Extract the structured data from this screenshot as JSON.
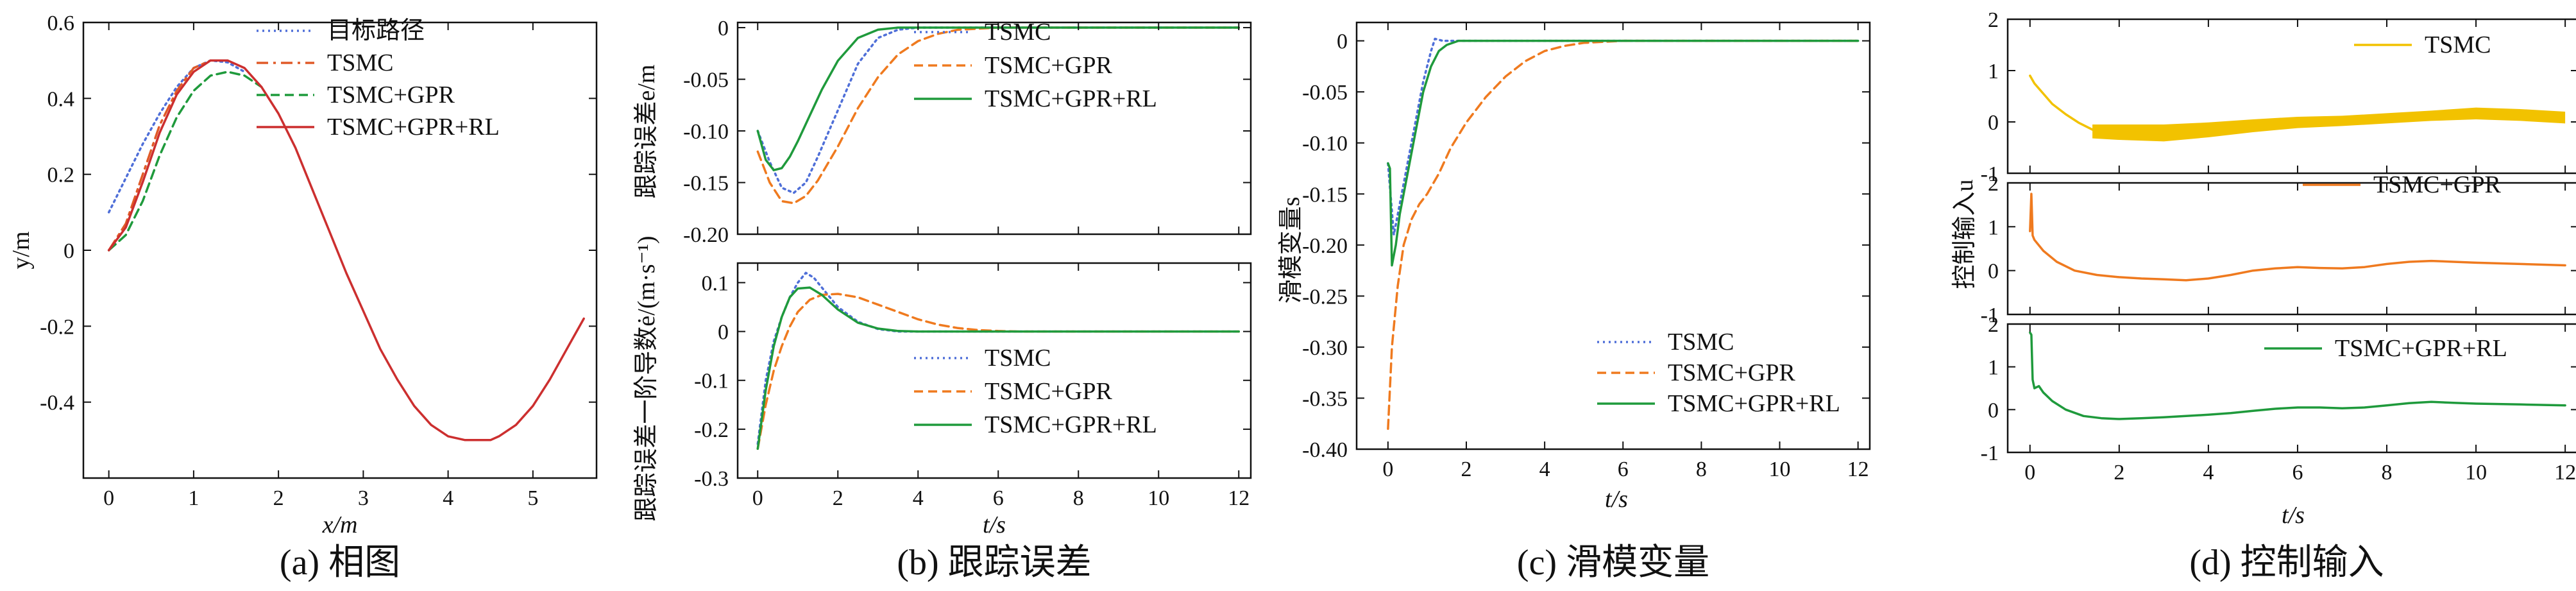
{
  "figure": {
    "captions": [
      "(a) 相图",
      "(b) 跟踪误差",
      "(c) 滑模变量",
      "(d) 控制输入"
    ]
  },
  "colors": {
    "target": "#4f6fd8",
    "tsmc": "#e8c40a",
    "tsmc_gpr_rl": "#cc2f2f",
    "gpr": "#ef7a1f",
    "gpr_rl": "#1f9a3c",
    "tsmc_c": "#4f6fd8"
  },
  "chart_data": [
    {
      "id": "a",
      "type": "line",
      "title": "(a) 相图",
      "xlabel": "x/m",
      "ylabel": "y/m",
      "xlim": [
        -0.3,
        5.75
      ],
      "ylim": [
        -0.6,
        0.6
      ],
      "xticks": [
        0,
        1,
        2,
        3,
        4,
        5
      ],
      "xtick_labels": [
        "0",
        "1",
        "2",
        "3",
        "4",
        "5"
      ],
      "yticks": [
        -0.4,
        -0.2,
        0,
        0.2,
        0.4,
        0.6
      ],
      "ytick_labels": [
        "-0.4",
        "-0.2",
        "0",
        "0.2",
        "0.4",
        "0.6"
      ],
      "legend": "top-right",
      "series": [
        {
          "name": "目标路径",
          "style": "dotted",
          "color": "#4f6fd8",
          "x": [
            0,
            0.2,
            0.4,
            0.6,
            0.8,
            1.0,
            1.2,
            1.4,
            1.6
          ],
          "y": [
            0.1,
            0.19,
            0.28,
            0.36,
            0.43,
            0.48,
            0.5,
            0.495,
            0.47
          ]
        },
        {
          "name": "TSMC",
          "style": "dashdot",
          "color": "#e05a28",
          "x": [
            0,
            0.2,
            0.4,
            0.6,
            0.8,
            1.0,
            1.2,
            1.4
          ],
          "y": [
            0,
            0.07,
            0.2,
            0.33,
            0.42,
            0.48,
            0.5,
            0.5
          ]
        },
        {
          "name": "TSMC+GPR",
          "style": "dashed",
          "color": "#1f9a3c",
          "x": [
            0,
            0.2,
            0.4,
            0.6,
            0.8,
            1.0,
            1.2,
            1.4,
            1.6,
            1.8
          ],
          "y": [
            0,
            0.04,
            0.13,
            0.25,
            0.35,
            0.42,
            0.46,
            0.47,
            0.46,
            0.43
          ]
        },
        {
          "name": "TSMC+GPR+RL",
          "style": "solid",
          "color": "#cc2f2f",
          "x": [
            0,
            0.2,
            0.4,
            0.6,
            0.8,
            1.0,
            1.2,
            1.4,
            1.6,
            1.8,
            2.0,
            2.2,
            2.4,
            2.6,
            2.8,
            3.0,
            3.2,
            3.4,
            3.6,
            3.8,
            4.0,
            4.2,
            4.4,
            4.5,
            4.6,
            4.8,
            5.0,
            5.2,
            5.4,
            5.6
          ],
          "y": [
            0,
            0.06,
            0.18,
            0.31,
            0.41,
            0.47,
            0.5,
            0.5,
            0.48,
            0.43,
            0.36,
            0.27,
            0.16,
            0.05,
            -0.06,
            -0.16,
            -0.26,
            -0.34,
            -0.41,
            -0.46,
            -0.49,
            -0.5,
            -0.5,
            -0.5,
            -0.49,
            -0.46,
            -0.41,
            -0.34,
            -0.26,
            -0.18
          ]
        }
      ]
    },
    {
      "id": "b1",
      "type": "line",
      "ylabel": "跟踪误差e/m",
      "xlim": [
        -0.5,
        12.3
      ],
      "ylim": [
        -0.2,
        0.005
      ],
      "xticks": [
        0,
        2,
        4,
        6,
        8,
        10,
        12
      ],
      "yticks": [
        -0.2,
        -0.15,
        -0.1,
        -0.05,
        0
      ],
      "ytick_labels": [
        "-0.20",
        "-0.15",
        "-0.10",
        "-0.05",
        "0"
      ],
      "legend": "top-right",
      "series": [
        {
          "name": "TSMC",
          "style": "dotted",
          "color": "#4f6fd8",
          "x": [
            0,
            0.3,
            0.6,
            0.9,
            1.2,
            1.5,
            2.0,
            2.5,
            3.0,
            3.5,
            4.0,
            5.0,
            12.0
          ],
          "y": [
            -0.1,
            -0.13,
            -0.155,
            -0.16,
            -0.15,
            -0.125,
            -0.08,
            -0.035,
            -0.01,
            -0.002,
            0,
            0,
            0
          ]
        },
        {
          "name": "TSMC+GPR",
          "style": "dashed",
          "color": "#ef7a1f",
          "x": [
            0,
            0.3,
            0.6,
            0.9,
            1.2,
            1.5,
            2.0,
            2.5,
            3.0,
            3.5,
            4.0,
            4.5,
            5.0,
            5.5,
            6.0,
            7.0,
            12.0
          ],
          "y": [
            -0.12,
            -0.15,
            -0.168,
            -0.17,
            -0.163,
            -0.148,
            -0.115,
            -0.078,
            -0.048,
            -0.026,
            -0.013,
            -0.006,
            -0.002,
            -0.001,
            0,
            0,
            0
          ]
        },
        {
          "name": "TSMC+GPR+RL",
          "style": "solid",
          "color": "#1f9a3c",
          "x": [
            0,
            0.2,
            0.4,
            0.6,
            0.8,
            1.0,
            1.3,
            1.6,
            2.0,
            2.5,
            3.0,
            3.5,
            4.0,
            12.0
          ],
          "y": [
            -0.1,
            -0.128,
            -0.138,
            -0.136,
            -0.125,
            -0.11,
            -0.085,
            -0.06,
            -0.032,
            -0.01,
            -0.002,
            0,
            0,
            0
          ]
        }
      ]
    },
    {
      "id": "b2",
      "type": "line",
      "xlabel": "t/s",
      "ylabel": "跟踪误差一阶导数ė/(m·s⁻¹)",
      "xlim": [
        -0.5,
        12.3
      ],
      "ylim": [
        -0.3,
        0.14
      ],
      "xticks": [
        0,
        2,
        4,
        6,
        8,
        10,
        12
      ],
      "xtick_labels": [
        "0",
        "2",
        "4",
        "6",
        "8",
        "10",
        "12"
      ],
      "yticks": [
        -0.3,
        -0.2,
        -0.1,
        0,
        0.1
      ],
      "ytick_labels": [
        "-0.3",
        "-0.2",
        "-0.1",
        "0",
        "0.1"
      ],
      "legend": "bottom-right",
      "series": [
        {
          "name": "TSMC",
          "style": "dotted",
          "color": "#4f6fd8",
          "x": [
            0,
            0.2,
            0.4,
            0.6,
            0.8,
            1.0,
            1.2,
            1.4,
            1.7,
            2.0,
            2.5,
            3.0,
            3.5,
            4.0,
            12.0
          ],
          "y": [
            -0.23,
            -0.1,
            -0.02,
            0.03,
            0.07,
            0.1,
            0.12,
            0.11,
            0.08,
            0.05,
            0.02,
            0.005,
            0,
            0,
            0
          ]
        },
        {
          "name": "TSMC+GPR",
          "style": "dashed",
          "color": "#ef7a1f",
          "x": [
            0,
            0.2,
            0.4,
            0.6,
            0.8,
            1.0,
            1.3,
            1.6,
            2.0,
            2.5,
            3.0,
            3.5,
            4.0,
            4.5,
            5.0,
            5.5,
            6.0,
            6.5,
            12.0
          ],
          "y": [
            -0.24,
            -0.15,
            -0.08,
            -0.03,
            0.01,
            0.04,
            0.065,
            0.075,
            0.077,
            0.07,
            0.055,
            0.04,
            0.025,
            0.014,
            0.007,
            0.003,
            0.001,
            0,
            0
          ]
        },
        {
          "name": "TSMC+GPR+RL",
          "style": "solid",
          "color": "#1f9a3c",
          "x": [
            0,
            0.2,
            0.4,
            0.6,
            0.8,
            1.0,
            1.3,
            1.6,
            2.0,
            2.5,
            3.0,
            3.5,
            4.0,
            12.0
          ],
          "y": [
            -0.24,
            -0.12,
            -0.03,
            0.03,
            0.07,
            0.088,
            0.09,
            0.075,
            0.045,
            0.018,
            0.006,
            0.001,
            0,
            0
          ]
        }
      ]
    },
    {
      "id": "c",
      "type": "line",
      "title": "(c) 滑模变量",
      "xlabel": "t/s",
      "ylabel": "滑模变量s",
      "xlim": [
        -0.8,
        12.3
      ],
      "ylim": [
        -0.4,
        0.018
      ],
      "xticks": [
        0,
        2,
        4,
        6,
        8,
        10,
        12
      ],
      "xtick_labels": [
        "0",
        "2",
        "4",
        "6",
        "8",
        "10",
        "12"
      ],
      "yticks": [
        -0.4,
        -0.35,
        -0.3,
        -0.25,
        -0.2,
        -0.15,
        -0.1,
        -0.05,
        0
      ],
      "ytick_labels": [
        "-0.40",
        "-0.35",
        "-0.30",
        "-0.25",
        "-0.20",
        "-0.15",
        "-0.10",
        "-0.05",
        "0"
      ],
      "legend": "bottom-right",
      "series": [
        {
          "name": "TSMC",
          "style": "dotted",
          "color": "#4f6fd8",
          "x": [
            0,
            0.15,
            0.3,
            0.5,
            0.7,
            0.9,
            1.1,
            1.2,
            1.4,
            12.0
          ],
          "y": [
            -0.12,
            -0.19,
            -0.16,
            -0.12,
            -0.08,
            -0.04,
            -0.01,
            0.002,
            0,
            0
          ]
        },
        {
          "name": "TSMC+GPR",
          "style": "dashed",
          "color": "#ef7a1f",
          "x": [
            0,
            0.1,
            0.25,
            0.4,
            0.6,
            0.8,
            1.0,
            1.3,
            1.6,
            2.0,
            2.5,
            3.0,
            3.5,
            4.0,
            4.5,
            5.0,
            5.5,
            6.0,
            12.0
          ],
          "y": [
            -0.38,
            -0.3,
            -0.24,
            -0.2,
            -0.175,
            -0.16,
            -0.15,
            -0.13,
            -0.105,
            -0.08,
            -0.055,
            -0.035,
            -0.02,
            -0.01,
            -0.005,
            -0.002,
            -0.001,
            0,
            0
          ]
        },
        {
          "name": "TSMC+GPR+RL",
          "style": "solid",
          "color": "#1f9a3c",
          "x": [
            0,
            0.05,
            0.1,
            0.2,
            0.3,
            0.5,
            0.7,
            0.9,
            1.1,
            1.3,
            1.5,
            1.8,
            2.2,
            12.0
          ],
          "y": [
            -0.12,
            -0.125,
            -0.22,
            -0.2,
            -0.17,
            -0.13,
            -0.09,
            -0.05,
            -0.025,
            -0.01,
            -0.004,
            0,
            0,
            0
          ]
        }
      ]
    },
    {
      "id": "d1",
      "type": "area",
      "ylabel": "",
      "xlim": [
        -0.5,
        12.3
      ],
      "ylim": [
        -1,
        2
      ],
      "xticks": [
        0,
        2,
        4,
        6,
        8,
        10,
        12
      ],
      "yticks": [
        -1,
        0,
        1,
        2
      ],
      "ytick_labels": [
        "-1",
        "0",
        "1",
        "2"
      ],
      "legend": "top-right",
      "series": [
        {
          "name": "TSMC",
          "style": "solid",
          "color": "#f2c200",
          "x": [
            0,
            0.1,
            0.3,
            0.5,
            0.8,
            1.1,
            1.4
          ],
          "y": [
            0.9,
            0.75,
            0.55,
            0.35,
            0.15,
            -0.02,
            -0.15
          ]
        },
        {
          "name": "TSMC",
          "style": "band",
          "color": "#f2c200",
          "x": [
            1.4,
            2,
            3,
            4,
            5,
            6,
            7,
            8,
            9,
            10,
            11,
            12
          ],
          "upper": [
            -0.05,
            -0.05,
            -0.05,
            -0.01,
            0.05,
            0.1,
            0.12,
            0.17,
            0.22,
            0.28,
            0.25,
            0.2
          ],
          "lower": [
            -0.32,
            -0.35,
            -0.38,
            -0.3,
            -0.2,
            -0.12,
            -0.08,
            -0.03,
            0.02,
            0.05,
            0.02,
            -0.03
          ]
        }
      ]
    },
    {
      "id": "d2",
      "type": "line",
      "ylabel": "控制输入u",
      "xlim": [
        -0.5,
        12.3
      ],
      "ylim": [
        -1,
        2
      ],
      "xticks": [
        0,
        2,
        4,
        6,
        8,
        10,
        12
      ],
      "yticks": [
        -1,
        0,
        1,
        2
      ],
      "ytick_labels": [
        "-1",
        "0",
        "1",
        "2"
      ],
      "legend": "top-right",
      "series": [
        {
          "name": "TSMC+GPR",
          "style": "solid",
          "color": "#ef7a1f",
          "x": [
            0,
            0.03,
            0.06,
            0.1,
            0.3,
            0.6,
            1.0,
            1.5,
            2,
            2.5,
            3,
            3.5,
            4,
            4.5,
            5,
            5.5,
            6,
            6.5,
            7,
            7.5,
            8,
            8.5,
            9,
            9.5,
            10,
            11,
            12
          ],
          "y": [
            0.9,
            1.75,
            0.8,
            0.7,
            0.45,
            0.2,
            0,
            -0.1,
            -0.15,
            -0.18,
            -0.2,
            -0.22,
            -0.18,
            -0.1,
            0,
            0.05,
            0.08,
            0.06,
            0.05,
            0.08,
            0.15,
            0.2,
            0.22,
            0.2,
            0.18,
            0.15,
            0.12
          ]
        }
      ]
    },
    {
      "id": "d3",
      "type": "line",
      "xlabel": "t/s",
      "xlim": [
        -0.5,
        12.3
      ],
      "ylim": [
        -1,
        2
      ],
      "xticks": [
        0,
        2,
        4,
        6,
        8,
        10,
        12
      ],
      "xtick_labels": [
        "0",
        "2",
        "4",
        "6",
        "8",
        "10",
        "12"
      ],
      "yticks": [
        -1,
        0,
        1,
        2
      ],
      "ytick_labels": [
        "-1",
        "0",
        "1",
        "2"
      ],
      "legend": "top-right",
      "series": [
        {
          "name": "TSMC+GPR+RL",
          "style": "solid",
          "color": "#1f9a3c",
          "x": [
            0,
            0.03,
            0.06,
            0.1,
            0.2,
            0.3,
            0.5,
            0.8,
            1.2,
            1.6,
            2,
            2.5,
            3,
            3.5,
            4,
            4.5,
            5,
            5.5,
            6,
            6.5,
            7,
            7.5,
            8,
            8.5,
            9,
            9.5,
            10,
            11,
            12
          ],
          "y": [
            1.8,
            1.75,
            0.7,
            0.5,
            0.55,
            0.4,
            0.2,
            0,
            -0.15,
            -0.2,
            -0.22,
            -0.2,
            -0.18,
            -0.15,
            -0.12,
            -0.08,
            -0.03,
            0.02,
            0.05,
            0.05,
            0.03,
            0.05,
            0.1,
            0.15,
            0.18,
            0.16,
            0.14,
            0.12,
            0.1
          ]
        }
      ]
    }
  ]
}
